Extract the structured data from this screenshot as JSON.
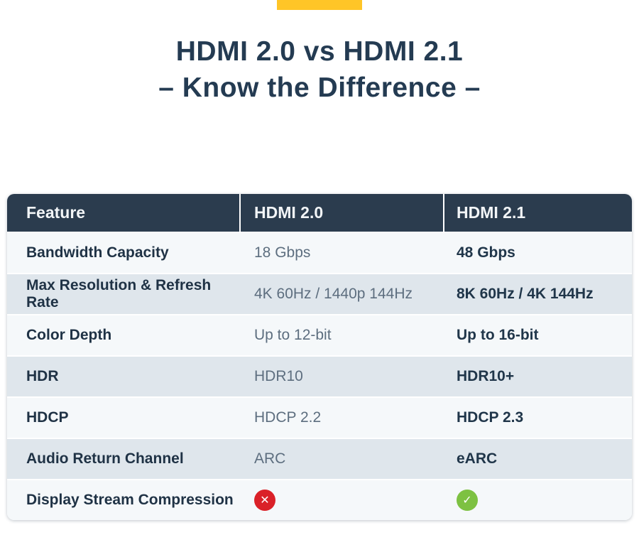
{
  "accent": {
    "color": "#FFC527"
  },
  "title": {
    "line1": "HDMI 2.0 vs HDMI 2.1",
    "line2": "– Know the Difference –",
    "color": "#243B52"
  },
  "table": {
    "columns": {
      "feature": "Feature",
      "hdmi20": "HDMI 2.0",
      "hdmi21": "HDMI 2.1"
    },
    "rows": [
      {
        "feature": "Bandwidth Capacity",
        "hdmi20": "18 Gbps",
        "hdmi21": "48 Gbps"
      },
      {
        "feature": "Max Resolution & Refresh Rate",
        "hdmi20": "4K 60Hz / 1440p 144Hz",
        "hdmi21": "8K 60Hz / 4K 144Hz"
      },
      {
        "feature": "Color Depth",
        "hdmi20": "Up to 12-bit",
        "hdmi21": "Up to 16-bit"
      },
      {
        "feature": "HDR",
        "hdmi20": "HDR10",
        "hdmi21": "HDR10+"
      },
      {
        "feature": "HDCP",
        "hdmi20": "HDCP 2.2",
        "hdmi21": "HDCP 2.3"
      },
      {
        "feature": "Audio Return Channel",
        "hdmi20": "ARC",
        "hdmi21": "eARC"
      },
      {
        "feature": "Display Stream Compression",
        "hdmi20_icon": {
          "name": "cross-icon",
          "glyph": "✕",
          "color": "#DA2128"
        },
        "hdmi21_icon": {
          "name": "check-icon",
          "glyph": "✓",
          "color": "#7DC142"
        }
      }
    ]
  },
  "colors": {
    "header_bg": "#2B3C4E",
    "header_text": "#F2F5F7",
    "row_light": "#F5F8FA",
    "row_dark": "#DFE6EC",
    "feature_text": "#1F3245",
    "hdmi20_text": "#5D6E7F",
    "hdmi21_text": "#20364A",
    "cross_red": "#DA2128",
    "check_green": "#7DC142"
  }
}
